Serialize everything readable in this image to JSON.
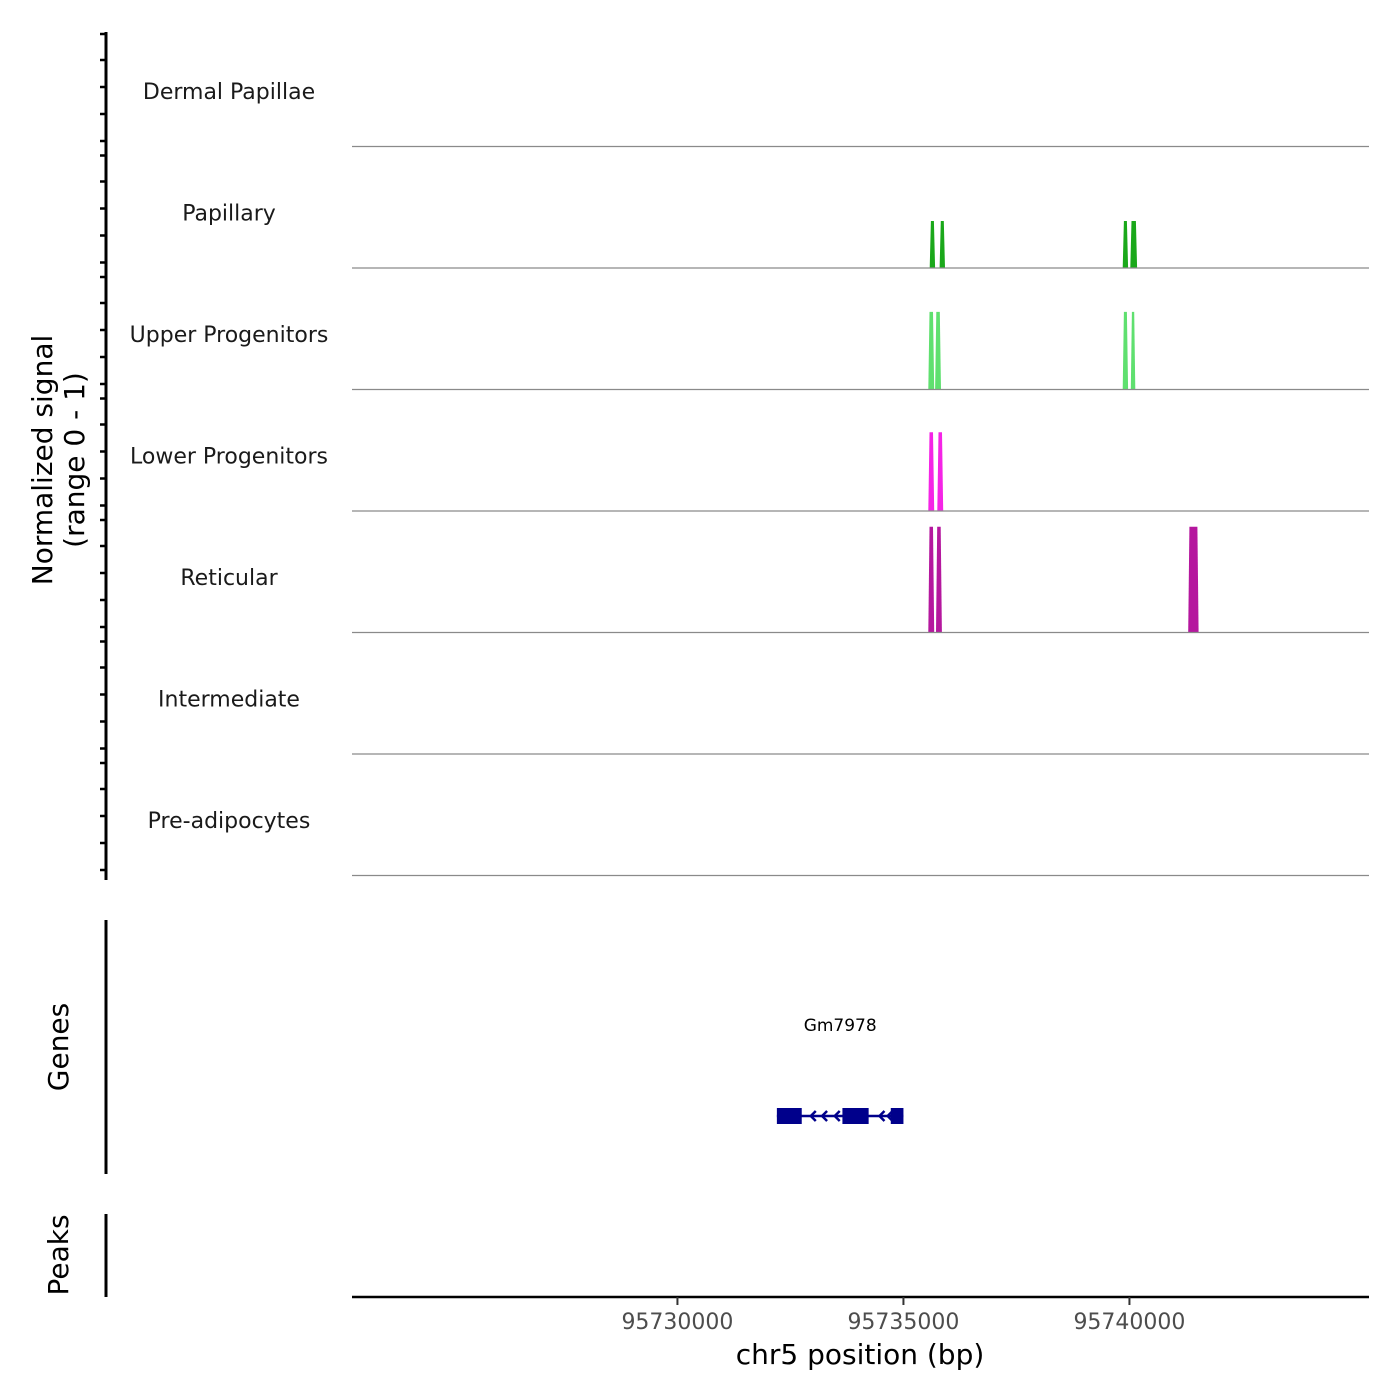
{
  "chart_data": {
    "type": "coverage-track",
    "ylabel_line1": "Normalized signal",
    "ylabel_line2": "(range 0 - 1)",
    "xlabel": "chr5 position (bp)",
    "xlim": [
      95722800,
      95745300
    ],
    "x_ticks": [
      {
        "value": 95730000,
        "label": "95730000"
      },
      {
        "value": 95735000,
        "label": "95735000"
      },
      {
        "value": 95740000,
        "label": "95740000"
      }
    ],
    "tracks": [
      {
        "name": "Dermal Papillae",
        "color": "#444444",
        "peaks": []
      },
      {
        "name": "Papillary",
        "color": "#1aa81a",
        "peaks": [
          {
            "start": 95735580,
            "end": 95735700,
            "height": 0.4
          },
          {
            "start": 95735800,
            "end": 95735920,
            "height": 0.4
          },
          {
            "start": 95739850,
            "end": 95739970,
            "height": 0.4
          },
          {
            "start": 95740020,
            "end": 95740170,
            "height": 0.4
          }
        ]
      },
      {
        "name": "Upper Progenitors",
        "color": "#5fe06f",
        "peaks": [
          {
            "start": 95735550,
            "end": 95735680,
            "height": 0.66
          },
          {
            "start": 95735700,
            "end": 95735830,
            "height": 0.66
          },
          {
            "start": 95739850,
            "end": 95739970,
            "height": 0.66
          },
          {
            "start": 95740030,
            "end": 95740130,
            "height": 0.66
          }
        ]
      },
      {
        "name": "Lower Progenitors",
        "color": "#f524e6",
        "peaks": [
          {
            "start": 95735550,
            "end": 95735680,
            "height": 0.67
          },
          {
            "start": 95735750,
            "end": 95735880,
            "height": 0.67
          }
        ]
      },
      {
        "name": "Reticular",
        "color": "#b5179e",
        "peaks": [
          {
            "start": 95735550,
            "end": 95735680,
            "height": 0.9
          },
          {
            "start": 95735720,
            "end": 95735850,
            "height": 0.9
          },
          {
            "start": 95741300,
            "end": 95741530,
            "height": 0.9
          }
        ]
      },
      {
        "name": "Intermediate",
        "color": "#444444",
        "peaks": []
      },
      {
        "name": "Pre-adipocytes",
        "color": "#444444",
        "peaks": []
      }
    ],
    "genes_panel_label": "Genes",
    "peaks_panel_label": "Peaks",
    "gene": {
      "name": "Gm7978",
      "start": 95732200,
      "end": 95735000,
      "strand": "-",
      "color": "#00008b",
      "exons": [
        {
          "start": 95732200,
          "end": 95732750
        },
        {
          "start": 95733650,
          "end": 95734230
        },
        {
          "start": 95734720,
          "end": 95735000
        }
      ],
      "arrows": [
        95732950,
        95733200,
        95733480,
        95734470,
        95734650
      ]
    }
  }
}
